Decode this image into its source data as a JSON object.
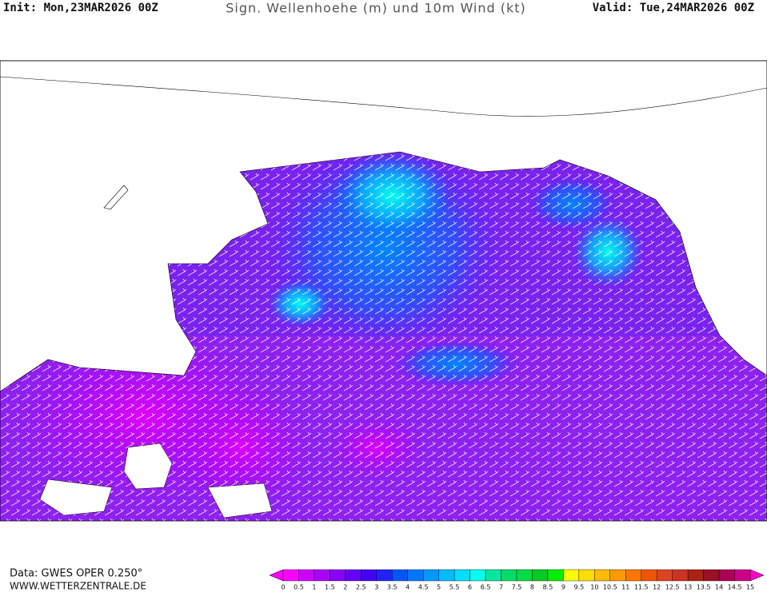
{
  "header": {
    "init": "Init: Mon,23MAR2026 00Z",
    "title": "Sign. Wellenhoehe (m) und 10m Wind (kt)",
    "valid": "Valid: Tue,24MAR2026 00Z"
  },
  "footer": {
    "source": "Data: GWES OPER 0.250°",
    "website": "WWW.WETTERZENTRALE.DE"
  },
  "legend": {
    "ticks": [
      0,
      0.5,
      1,
      1.5,
      2,
      2.5,
      3,
      3.5,
      4,
      4.5,
      5,
      5.5,
      6,
      6.5,
      7,
      7.5,
      8,
      8.5,
      9,
      9.5,
      10,
      10.5,
      11,
      11.5,
      12,
      12.5,
      13,
      13.5,
      14,
      14.5,
      15
    ],
    "colors": [
      "#ff00ff",
      "#cc00ff",
      "#aa00ff",
      "#8800ff",
      "#6600ff",
      "#4400ff",
      "#2222ff",
      "#0055ff",
      "#0077ff",
      "#0099ff",
      "#00bbff",
      "#00ddff",
      "#00ffee",
      "#00e8a0",
      "#00dd66",
      "#00dd44",
      "#00cc22",
      "#00ee00",
      "#ffff00",
      "#ffdd00",
      "#ffbb00",
      "#ff9900",
      "#ff7700",
      "#ee5500",
      "#dd4422",
      "#cc3322",
      "#aa2211",
      "#991122",
      "#aa0055",
      "#cc0088"
    ],
    "low_color": "#ff00ff",
    "high_color": "#ff00cc"
  }
}
